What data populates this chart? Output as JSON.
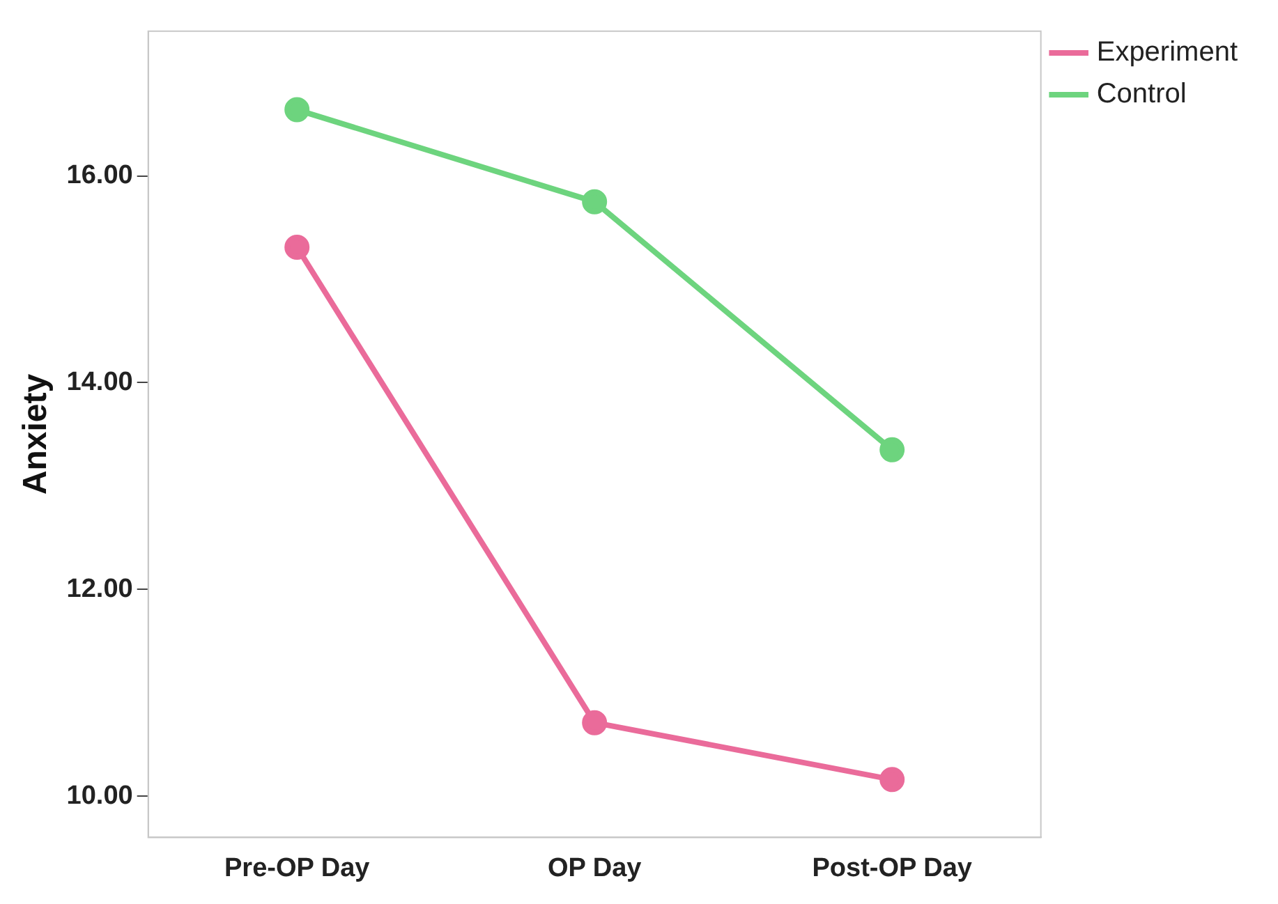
{
  "chart_data": {
    "type": "line",
    "ylabel": "Anxiety",
    "categories": [
      "Pre-OP Day",
      "OP Day",
      "Post-OP Day"
    ],
    "series": [
      {
        "name": "Experiment",
        "color": "#ea6b9a",
        "values": [
          15.31,
          10.71,
          10.16
        ]
      },
      {
        "name": "Control",
        "color": "#6dd47e",
        "values": [
          16.64,
          15.75,
          13.35
        ]
      }
    ],
    "ylim": [
      9.6,
      17.4
    ],
    "yticks": [
      {
        "value": 10,
        "label": "10.00"
      },
      {
        "value": 12,
        "label": "12.00"
      },
      {
        "value": 14,
        "label": "14.00"
      },
      {
        "value": 16,
        "label": "16.00"
      }
    ],
    "grid": false,
    "legend": "top right",
    "marker": "circle",
    "line_style": "solid"
  }
}
